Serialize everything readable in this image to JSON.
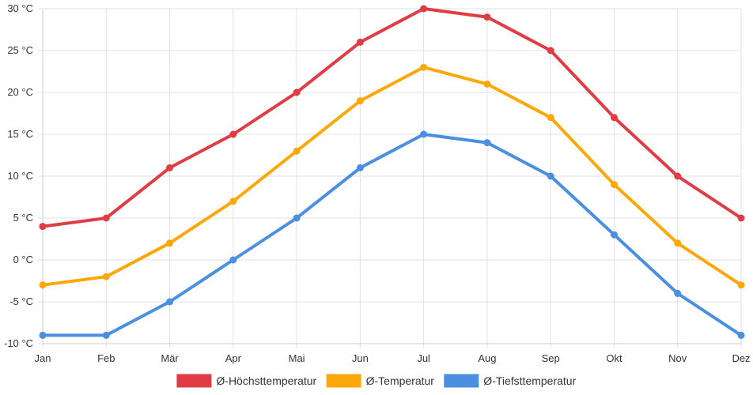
{
  "chart_data": {
    "type": "line",
    "categories": [
      "Jan",
      "Feb",
      "Mär",
      "Apr",
      "Mai",
      "Jun",
      "Jul",
      "Aug",
      "Sep",
      "Okt",
      "Nov",
      "Dez"
    ],
    "y_ticks": [
      "-10 °C",
      "-5 °C",
      "0 °C",
      "5 °C",
      "10 °C",
      "15 °C",
      "20 °C",
      "25 °C",
      "30 °C"
    ],
    "ylim": [
      -10,
      30
    ],
    "grid": true,
    "legend_position": "bottom",
    "series": [
      {
        "name": "Ø-Höchsttemperatur",
        "color": "#e03c46",
        "values": [
          4,
          5,
          11,
          15,
          20,
          26,
          30,
          29,
          25,
          17,
          10,
          5
        ]
      },
      {
        "name": "Ø-Temperatur",
        "color": "#fba90a",
        "values": [
          -3,
          -2,
          2,
          7,
          13,
          19,
          23,
          21,
          17,
          9,
          2,
          -3
        ]
      },
      {
        "name": "Ø-Tiefsttemperatur",
        "color": "#4a8fe0",
        "values": [
          -9,
          -9,
          -5,
          0,
          5,
          11,
          15,
          14,
          10,
          3,
          -4,
          -9
        ]
      }
    ]
  }
}
